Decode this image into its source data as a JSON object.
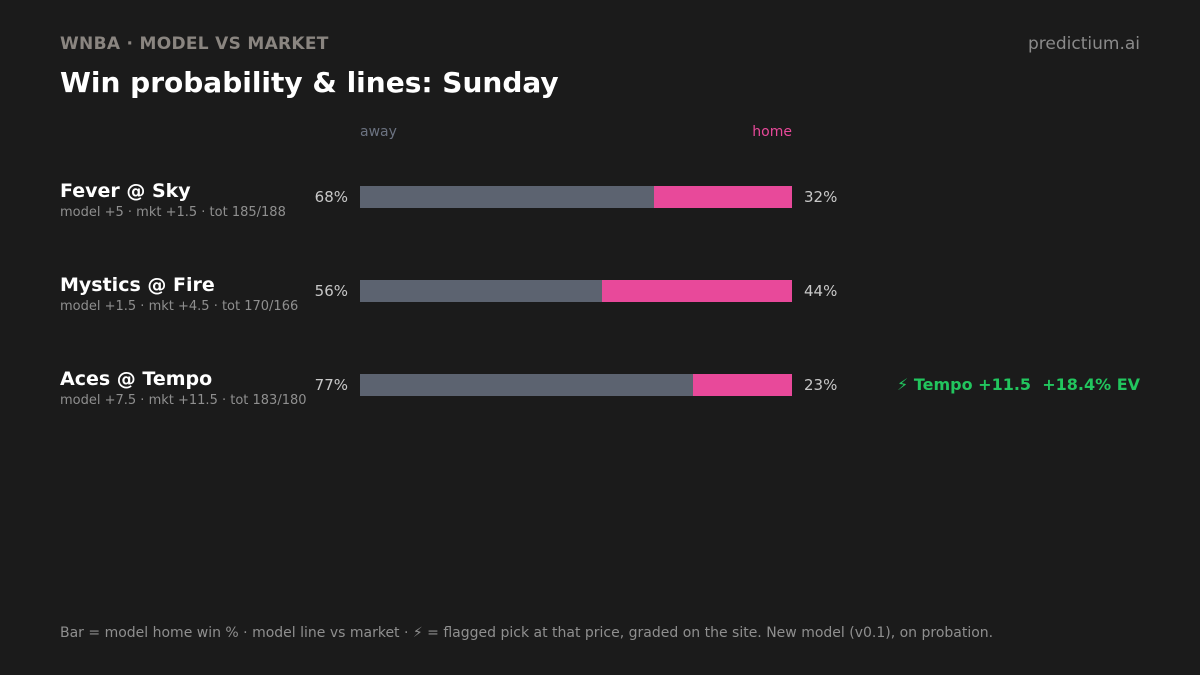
{
  "header": {
    "kicker": "WNBA · MODEL VS MARKET",
    "brand": "predictium.ai",
    "title": "Win probability & lines: Sunday"
  },
  "legend": {
    "away": "away",
    "home": "home"
  },
  "colors": {
    "away": "#5c6370",
    "home": "#e8499a",
    "flag": "#22c55e"
  },
  "chart_data": {
    "type": "bar",
    "stacked": true,
    "orientation": "horizontal",
    "categories": [
      "Fever @ Sky",
      "Mystics @ Fire",
      "Aces @ Tempo"
    ],
    "series": [
      {
        "name": "away",
        "values": [
          68,
          56,
          77
        ]
      },
      {
        "name": "home",
        "values": [
          32,
          44,
          23
        ]
      }
    ],
    "xlim": [
      0,
      100
    ]
  },
  "games": [
    {
      "matchup": "Fever @ Sky",
      "sub": "model +5 · mkt +1.5 · tot 185/188",
      "away_pct_label": "68%",
      "home_pct_label": "32%",
      "away": 68,
      "home": 32,
      "flag": ""
    },
    {
      "matchup": "Mystics @ Fire",
      "sub": "model +1.5 · mkt +4.5 · tot 170/166",
      "away_pct_label": "56%",
      "home_pct_label": "44%",
      "away": 56,
      "home": 44,
      "flag": ""
    },
    {
      "matchup": "Aces @ Tempo",
      "sub": "model +7.5 · mkt +11.5 · tot 183/180",
      "away_pct_label": "77%",
      "home_pct_label": "23%",
      "away": 77,
      "home": 23,
      "flag": "⚡ Tempo +11.5  +18.4% EV"
    }
  ],
  "footer": "Bar = model home win % · model line vs market · ⚡ = flagged pick at that price, graded on the site. New model (v0.1), on probation."
}
